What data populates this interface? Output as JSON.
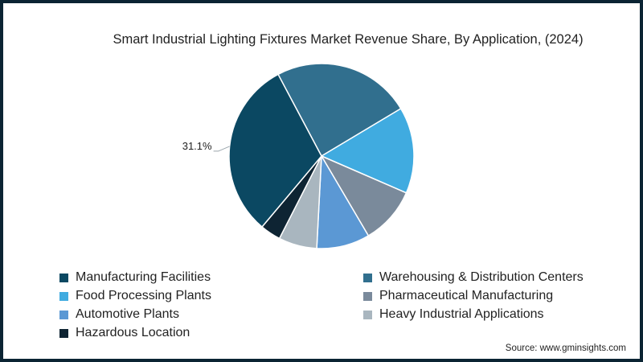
{
  "title": "Smart Industrial Lighting Fixtures Market Revenue Share, By Application, (2024)",
  "source": "Source: www.gminsights.com",
  "chart_data": {
    "type": "pie",
    "title": "Smart Industrial Lighting Fixtures Market Revenue Share, By Application, (2024)",
    "start_angle_deg": -28,
    "direction": "clockwise",
    "slices": [
      {
        "label": "Warehousing & Distribution Centers",
        "value": 24.2,
        "color": "#316f8e"
      },
      {
        "label": "Food Processing Plants",
        "value": 15.1,
        "color": "#40abe0"
      },
      {
        "label": "Pharmaceutical Manufacturing",
        "value": 10.0,
        "color": "#7a8a9b"
      },
      {
        "label": "Automotive Plants",
        "value": 9.3,
        "color": "#5b98d4"
      },
      {
        "label": "Heavy Industrial Applications",
        "value": 6.7,
        "color": "#a9b6bf"
      },
      {
        "label": "Hazardous Location",
        "value": 3.6,
        "color": "#0e2433"
      },
      {
        "label": "Manufacturing Facilities",
        "value": 31.1,
        "color": "#0b4862"
      }
    ],
    "data_labels": [
      {
        "slice": "Manufacturing Facilities",
        "text": "31.1%"
      }
    ]
  },
  "legend": [
    {
      "label": "Manufacturing Facilities",
      "color": "#0b4862"
    },
    {
      "label": "Warehousing & Distribution Centers",
      "color": "#316f8e"
    },
    {
      "label": "Food Processing Plants",
      "color": "#40abe0"
    },
    {
      "label": "Pharmaceutical Manufacturing",
      "color": "#7a8a9b"
    },
    {
      "label": "Automotive Plants",
      "color": "#5b98d4"
    },
    {
      "label": "Heavy Industrial Applications",
      "color": "#a9b6bf"
    },
    {
      "label": " Hazardous Location",
      "color": "#0e2433"
    }
  ]
}
